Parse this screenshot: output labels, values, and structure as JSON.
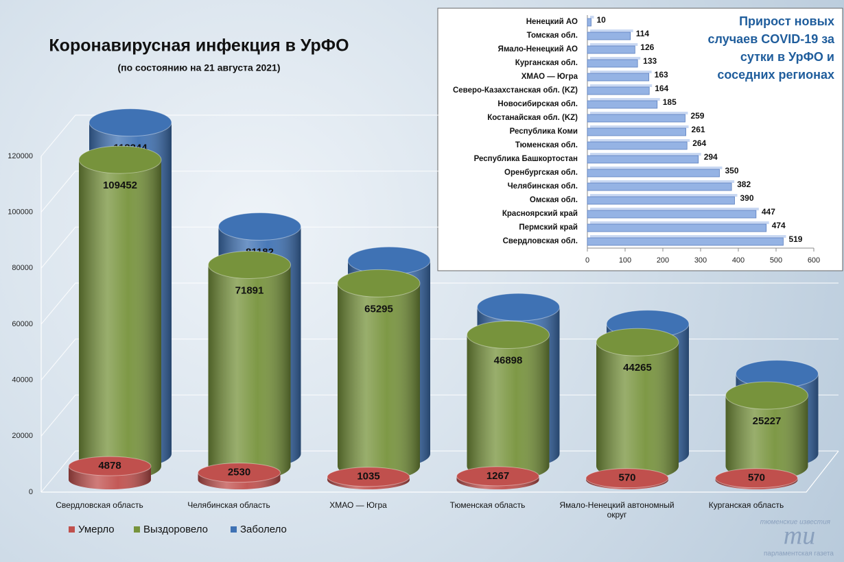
{
  "chart_data": [
    {
      "type": "cylinder",
      "title": "Коронавирусная инфекция в УрФО",
      "subtitle": "(по состоянию на 21 августа 2021)",
      "categories": [
        "Свердловская область",
        "Челябинская область",
        "ХМАО — Югра",
        "Тюменская область",
        "Ямало-Ненецкий автономный округ",
        "Курганская область"
      ],
      "series": [
        {
          "name": "Умерло",
          "color": "#c0504d",
          "values": [
            4878,
            2530,
            1035,
            1267,
            570,
            570
          ]
        },
        {
          "name": "Выздоровело",
          "color": "#77933c",
          "values": [
            109452,
            71891,
            65295,
            46898,
            44265,
            25227
          ]
        },
        {
          "name": "Заболело",
          "color": "#3f72b4",
          "values": [
            118344,
            81182,
            69015,
            52377,
            46368,
            28501
          ]
        }
      ],
      "ylim": [
        0,
        120000
      ],
      "yticks": [
        0,
        20000,
        40000,
        60000,
        80000,
        100000,
        120000
      ],
      "grid": true,
      "legend": "bottom-left"
    },
    {
      "type": "hbar",
      "title": "Прирост новых случаев COVID-19 за сутки в УрФО и соседних регионах",
      "categories": [
        "Ненецкий АО",
        "Томская обл.",
        "Ямало-Ненецкий АО",
        "Курганская обл.",
        "ХМАО — Югра",
        "Северо-Казахстанская обл. (KZ)",
        "Новосибирская обл.",
        "Костанайская обл. (KZ)",
        "Республика Коми",
        "Тюменская обл.",
        "Республика Башкортостан",
        "Оренбургская обл.",
        "Челябинская обл.",
        "Омская обл.",
        "Красноярский край",
        "Пермский край",
        "Свердловская обл."
      ],
      "values": [
        10,
        114,
        126,
        133,
        163,
        164,
        185,
        259,
        261,
        264,
        294,
        350,
        382,
        390,
        447,
        474,
        519
      ],
      "color": "#95b3e4",
      "xlim": [
        0,
        600
      ],
      "xticks": [
        0,
        100,
        200,
        300,
        400,
        500,
        600
      ],
      "grid": false
    }
  ],
  "watermark": {
    "top": "тюменские известия",
    "mark": "ти",
    "bottom": "парламентская газета"
  }
}
